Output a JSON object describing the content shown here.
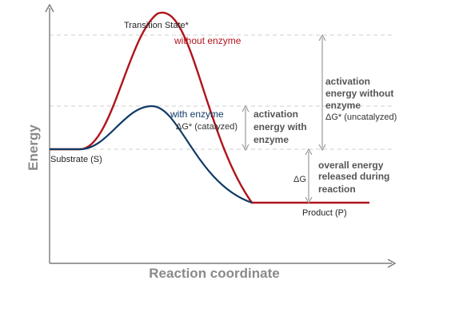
{
  "axes": {
    "y_label": "Energy",
    "x_label": "Reaction coordinate"
  },
  "labels": {
    "transition_state": "Transition State*",
    "without_enzyme": "without enzyme",
    "with_enzyme": "with enzyme",
    "dg_catalyzed": "ΔG* (catalyzed)",
    "substrate": "Substrate (S)",
    "product": "Product (P)",
    "delta_g": "ΔG"
  },
  "annotations": {
    "activation_with": [
      "activation",
      "energy with",
      "enzyme"
    ],
    "activation_without": [
      "activation",
      "energy without",
      "enzyme"
    ],
    "dg_uncatalyzed": "ΔG* (uncatalyzed)",
    "overall_energy": [
      "overall energy",
      "released during",
      "reaction"
    ]
  },
  "colors": {
    "uncatalyzed_curve": "#b0141c",
    "catalyzed_curve": "#0f3a66",
    "axis": "#7a7a7a",
    "guide": "#cfcfcf",
    "arrow": "#9a9a9a"
  }
}
